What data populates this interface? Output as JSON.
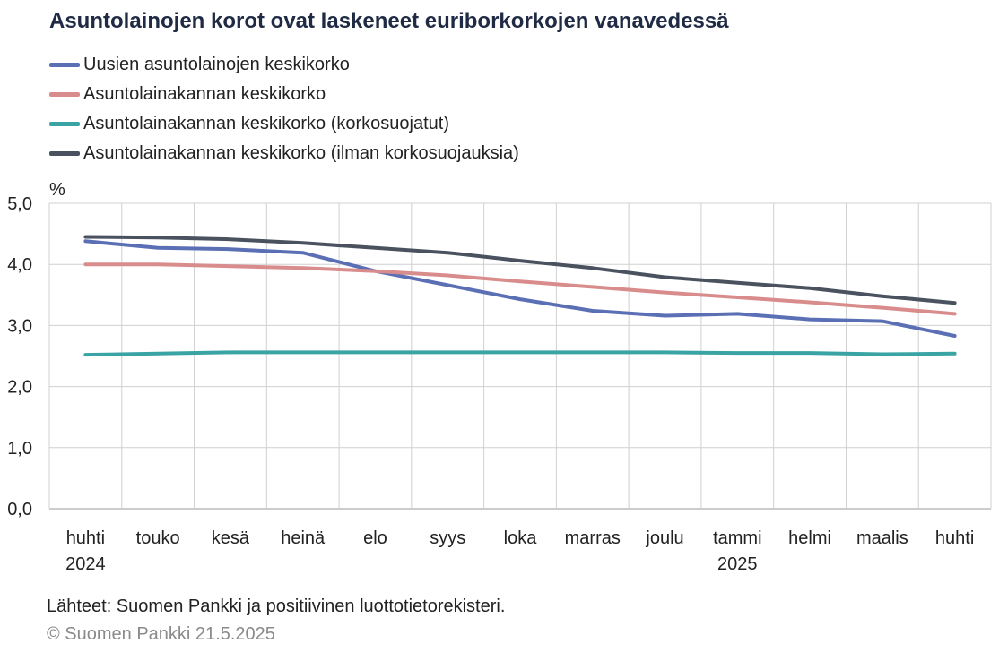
{
  "title": "Asuntolainojen korot ovat laskeneet euriborkorkojen vanavedessä",
  "source": "Lähteet: Suomen Pankki ja positiivinen luottotietorekisteri.",
  "copyright": "© Suomen Pankki 21.5.2025",
  "chart_data": {
    "type": "line",
    "title": "Asuntolainojen korot ovat laskeneet euriborkorkojen vanavedessä",
    "ylabel": "%",
    "xlabel": "",
    "ylim": [
      0,
      5
    ],
    "yticks": [
      "0,0",
      "1,0",
      "2,0",
      "3,0",
      "4,0",
      "5,0"
    ],
    "categories": [
      "huhti",
      "touko",
      "kesä",
      "heinä",
      "elo",
      "syys",
      "loka",
      "marras",
      "joulu",
      "tammi",
      "helmi",
      "maalis",
      "huhti"
    ],
    "year_labels": [
      {
        "index": 0,
        "label": "2024"
      },
      {
        "index": 9,
        "label": "2025"
      }
    ],
    "grid": true,
    "legend_position": "top-left",
    "series": [
      {
        "name": "Uusien asuntolainojen keskikorko",
        "color": "#5b6fb5",
        "values": [
          4.38,
          4.27,
          4.25,
          4.19,
          3.89,
          3.66,
          3.43,
          3.24,
          3.16,
          3.19,
          3.1,
          3.07,
          2.83
        ]
      },
      {
        "name": "Asuntolainakannan keskikorko",
        "color": "#d98c8c",
        "values": [
          4.0,
          4.0,
          3.97,
          3.94,
          3.89,
          3.82,
          3.72,
          3.63,
          3.54,
          3.46,
          3.38,
          3.29,
          3.19
        ]
      },
      {
        "name": "Asuntolainakannan keskikorko (korkosuojatut)",
        "color": "#3aa3a3",
        "values": [
          2.52,
          2.54,
          2.56,
          2.56,
          2.56,
          2.56,
          2.56,
          2.56,
          2.56,
          2.55,
          2.55,
          2.53,
          2.54
        ]
      },
      {
        "name": "Asuntolainakannan keskikorko (ilman korkosuojauksia)",
        "color": "#4a5260",
        "values": [
          4.45,
          4.44,
          4.41,
          4.35,
          4.27,
          4.19,
          4.06,
          3.94,
          3.79,
          3.7,
          3.61,
          3.48,
          3.37
        ]
      }
    ]
  }
}
